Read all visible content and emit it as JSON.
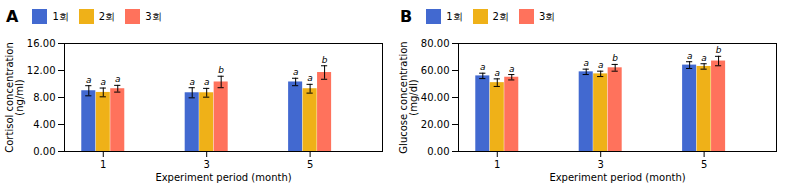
{
  "chart_data": [
    {
      "type": "bar",
      "title": "A",
      "xlabel": "Experiment period (month)",
      "ylabel": "Cortisol concentration\n(ng/ml)",
      "x": [
        1,
        3,
        5
      ],
      "xlim": [
        0.25,
        6.4
      ],
      "xticks": [
        1,
        3,
        5
      ],
      "ylim": [
        0,
        16
      ],
      "yticks": [
        {
          "value": 0,
          "label": "0.00"
        },
        {
          "value": 4,
          "label": "4.00"
        },
        {
          "value": 8,
          "label": "8.00"
        },
        {
          "value": 12,
          "label": "12.00"
        },
        {
          "value": 16,
          "label": "16.00"
        }
      ],
      "legend": "upper left",
      "series": [
        {
          "name": "1회",
          "values": [
            9.0,
            8.7,
            10.3
          ],
          "errors": [
            0.75,
            0.75,
            0.55
          ],
          "sig_labels": [
            "a",
            "a",
            "a"
          ]
        },
        {
          "name": "2회",
          "values": [
            8.75,
            8.7,
            9.3
          ],
          "errors": [
            0.65,
            0.65,
            0.65
          ],
          "sig_labels": [
            "a",
            "a",
            "a"
          ]
        },
        {
          "name": "3회",
          "values": [
            9.3,
            10.3,
            11.7
          ],
          "errors": [
            0.5,
            0.85,
            1.0
          ],
          "sig_labels": [
            "a",
            "b",
            "b"
          ]
        }
      ]
    },
    {
      "type": "bar",
      "title": "B",
      "xlabel": "Experiment period (month)",
      "ylabel": "Glucose concentration\n(mg/dl)",
      "x": [
        1,
        3,
        5
      ],
      "xlim": [
        0.25,
        6.4
      ],
      "xticks": [
        1,
        3,
        5
      ],
      "ylim": [
        0,
        80
      ],
      "yticks": [
        {
          "value": 0,
          "label": "0.00"
        },
        {
          "value": 20,
          "label": "20.00"
        },
        {
          "value": 40,
          "label": "40.00"
        },
        {
          "value": 60,
          "label": "60.00"
        },
        {
          "value": 80,
          "label": "80.00"
        }
      ],
      "legend": "upper left",
      "series": [
        {
          "name": "1회",
          "values": [
            56.0,
            59.0,
            64.0
          ],
          "errors": [
            2.0,
            2.0,
            2.5
          ],
          "sig_labels": [
            "a",
            "a",
            "a"
          ]
        },
        {
          "name": "2회",
          "values": [
            51.0,
            57.5,
            63.0
          ],
          "errors": [
            2.8,
            2.0,
            2.0
          ],
          "sig_labels": [
            "a",
            "a",
            "a"
          ]
        },
        {
          "name": "3회",
          "values": [
            55.0,
            62.0,
            67.0
          ],
          "errors": [
            2.0,
            2.5,
            3.5
          ],
          "sig_labels": [
            "a",
            "b",
            "b"
          ]
        }
      ]
    }
  ]
}
